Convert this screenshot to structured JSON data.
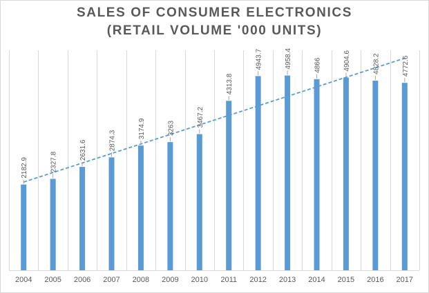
{
  "chart_data": {
    "type": "bar",
    "title_lines": [
      "SALES OF CONSUMER ELECTRONICS",
      "(RETAIL VOLUME '000 UNITS)"
    ],
    "categories": [
      "2004",
      "2005",
      "2006",
      "2007",
      "2008",
      "2009",
      "2010",
      "2011",
      "2012",
      "2013",
      "2014",
      "2015",
      "2016",
      "2017"
    ],
    "series": [
      {
        "name": "Retail volume ('000 units)",
        "values": [
          2182.9,
          2327.8,
          2631.6,
          2874.3,
          3174.9,
          3263,
          3467.2,
          4313.8,
          4943.7,
          4958.4,
          4866,
          4904.6,
          4828.2,
          4772.6
        ],
        "labels": [
          "2182.9",
          "2327.8",
          "2631.6",
          "2874.3",
          "3174.9",
          "3263",
          "3467.2",
          "4313.8",
          "4943.7",
          "4958.4",
          "4866",
          "4904.6",
          "4828.2",
          "4772.6"
        ]
      }
    ],
    "trendline": "linear",
    "xlabel": "",
    "ylabel": "",
    "ylim": [
      0,
      5600
    ],
    "grid": "vertical",
    "legend": "none",
    "colors": {
      "bar": "#5b9bd5",
      "trendline": "#5b9bd5",
      "grid": "#d9d9d9",
      "text": "#595959"
    }
  }
}
